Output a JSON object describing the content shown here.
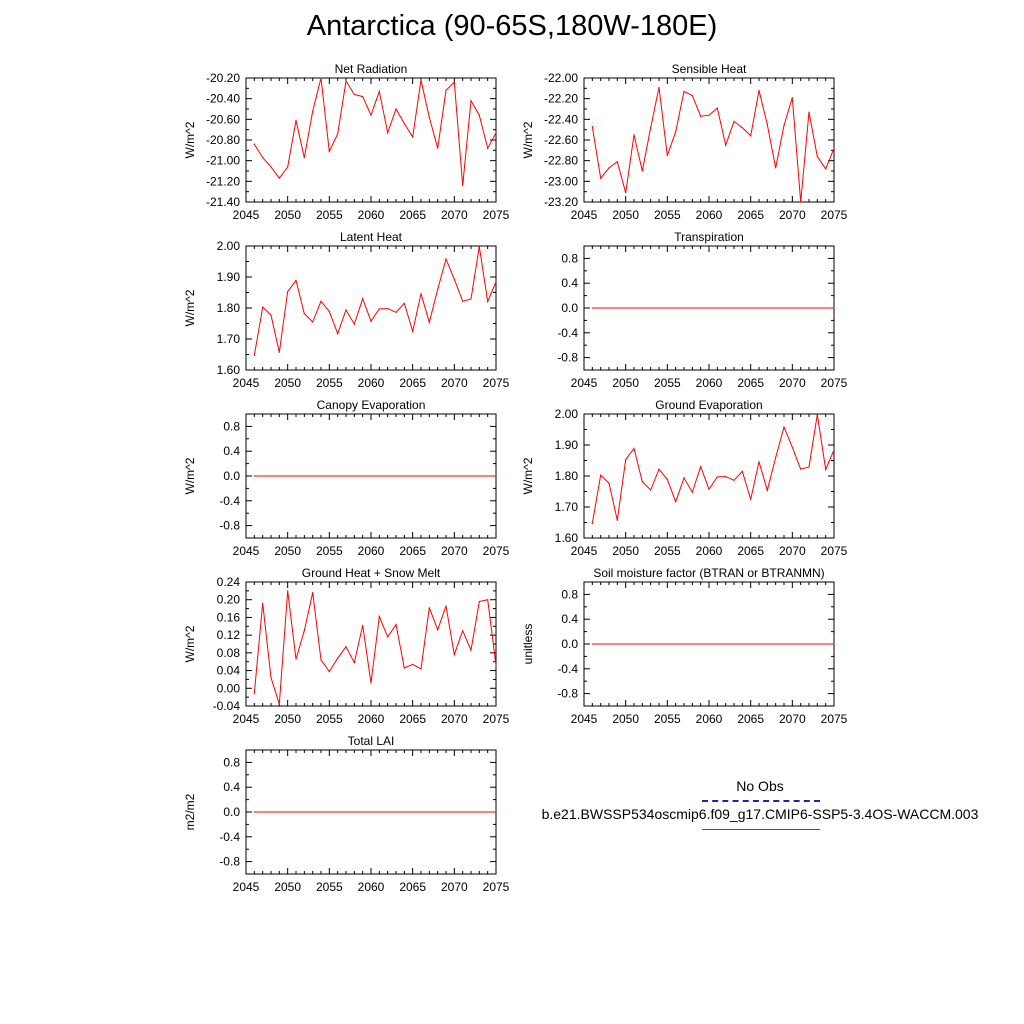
{
  "page": {
    "title": "Antarctica (90-65S,180W-180E)"
  },
  "legend": {
    "obs_label": "No Obs",
    "case_label": "b.e21.BWSSP534oscmip6.f09_g17.CMIP6-SSP5-3.4OS-WACCM.003",
    "obs_color": "#2222aa",
    "case_color": "#ff0000"
  },
  "chart_data": [
    {
      "type": "line",
      "title": "Net Radiation",
      "ylabel": "W/m^2",
      "xlim": [
        2045,
        2075
      ],
      "ylim": [
        -21.4,
        -20.2
      ],
      "xticks": [
        2045,
        2050,
        2055,
        2060,
        2065,
        2070,
        2075
      ],
      "yticks": [
        -21.4,
        -21.2,
        -21.0,
        -20.8,
        -20.6,
        -20.4,
        -20.2
      ],
      "ytick_labels": [
        "-21.40",
        "-21.20",
        "-21.00",
        "-20.80",
        "-20.60",
        "-20.40",
        "-20.20"
      ],
      "x": [
        2046,
        2047,
        2048,
        2049,
        2050,
        2051,
        2052,
        2053,
        2054,
        2055,
        2056,
        2057,
        2058,
        2059,
        2060,
        2061,
        2062,
        2063,
        2064,
        2065,
        2066,
        2067,
        2068,
        2069,
        2070,
        2071,
        2072,
        2073,
        2074,
        2075
      ],
      "series": [
        {
          "values": [
            -20.84,
            -20.97,
            -21.06,
            -21.17,
            -21.06,
            -20.61,
            -20.97,
            -20.52,
            -20.2,
            -20.91,
            -20.74,
            -20.23,
            -20.36,
            -20.38,
            -20.56,
            -20.33,
            -20.73,
            -20.5,
            -20.64,
            -20.77,
            -20.22,
            -20.58,
            -20.88,
            -20.32,
            -20.24,
            -21.24,
            -20.42,
            -20.56,
            -20.88,
            -20.73
          ]
        }
      ]
    },
    {
      "type": "line",
      "title": "Sensible Heat",
      "ylabel": "W/m^2",
      "xlim": [
        2045,
        2075
      ],
      "ylim": [
        -23.2,
        -22.0
      ],
      "xticks": [
        2045,
        2050,
        2055,
        2060,
        2065,
        2070,
        2075
      ],
      "yticks": [
        -23.2,
        -23.0,
        -22.8,
        -22.6,
        -22.4,
        -22.2,
        -22.0
      ],
      "ytick_labels": [
        "-23.20",
        "-23.00",
        "-22.80",
        "-22.60",
        "-22.40",
        "-22.20",
        "-22.00"
      ],
      "x": [
        2046,
        2047,
        2048,
        2049,
        2050,
        2051,
        2052,
        2053,
        2054,
        2055,
        2056,
        2057,
        2058,
        2059,
        2060,
        2061,
        2062,
        2063,
        2064,
        2065,
        2066,
        2067,
        2068,
        2069,
        2070,
        2071,
        2072,
        2073,
        2074,
        2075
      ],
      "series": [
        {
          "values": [
            -22.47,
            -22.97,
            -22.87,
            -22.81,
            -23.11,
            -22.55,
            -22.9,
            -22.48,
            -22.09,
            -22.75,
            -22.52,
            -22.13,
            -22.17,
            -22.37,
            -22.36,
            -22.29,
            -22.65,
            -22.42,
            -22.48,
            -22.56,
            -22.12,
            -22.45,
            -22.87,
            -22.46,
            -22.19,
            -23.2,
            -22.33,
            -22.76,
            -22.88,
            -22.68
          ]
        }
      ]
    },
    {
      "type": "line",
      "title": "Latent Heat",
      "ylabel": "W/m^2",
      "xlim": [
        2045,
        2075
      ],
      "ylim": [
        1.6,
        2.0
      ],
      "xticks": [
        2045,
        2050,
        2055,
        2060,
        2065,
        2070,
        2075
      ],
      "yticks": [
        1.6,
        1.7,
        1.8,
        1.9,
        2.0
      ],
      "ytick_labels": [
        "1.60",
        "1.70",
        "1.80",
        "1.90",
        "2.00"
      ],
      "x": [
        2046,
        2047,
        2048,
        2049,
        2050,
        2051,
        2052,
        2053,
        2054,
        2055,
        2056,
        2057,
        2058,
        2059,
        2060,
        2061,
        2062,
        2063,
        2064,
        2065,
        2066,
        2067,
        2068,
        2069,
        2070,
        2071,
        2072,
        2073,
        2074,
        2075
      ],
      "series": [
        {
          "values": [
            1.647,
            1.803,
            1.777,
            1.657,
            1.853,
            1.889,
            1.782,
            1.755,
            1.822,
            1.789,
            1.717,
            1.794,
            1.748,
            1.83,
            1.757,
            1.797,
            1.798,
            1.786,
            1.815,
            1.725,
            1.846,
            1.754,
            1.86,
            1.958,
            1.893,
            1.822,
            1.829,
            1.998,
            1.821,
            1.884
          ]
        }
      ]
    },
    {
      "type": "line",
      "title": "Transpiration",
      "ylabel": "",
      "xlim": [
        2045,
        2075
      ],
      "ylim": [
        -1.0,
        1.0
      ],
      "xticks": [
        2045,
        2050,
        2055,
        2060,
        2065,
        2070,
        2075
      ],
      "yticks": [
        -0.8,
        -0.4,
        0.0,
        0.4,
        0.8
      ],
      "ytick_labels": [
        "-0.8",
        "-0.4",
        "0.0",
        "0.4",
        "0.8"
      ],
      "x": [
        2046,
        2075
      ],
      "series": [
        {
          "values": [
            0.0,
            0.0
          ]
        }
      ]
    },
    {
      "type": "line",
      "title": "Canopy Evaporation",
      "ylabel": "W/m^2",
      "xlim": [
        2045,
        2075
      ],
      "ylim": [
        -1.0,
        1.0
      ],
      "xticks": [
        2045,
        2050,
        2055,
        2060,
        2065,
        2070,
        2075
      ],
      "yticks": [
        -0.8,
        -0.4,
        0.0,
        0.4,
        0.8
      ],
      "ytick_labels": [
        "-0.8",
        "-0.4",
        "0.0",
        "0.4",
        "0.8"
      ],
      "x": [
        2046,
        2075
      ],
      "series": [
        {
          "values": [
            0.0,
            0.0
          ]
        }
      ]
    },
    {
      "type": "line",
      "title": "Ground Evaporation",
      "ylabel": "W/m^2",
      "xlim": [
        2045,
        2075
      ],
      "ylim": [
        1.6,
        2.0
      ],
      "xticks": [
        2045,
        2050,
        2055,
        2060,
        2065,
        2070,
        2075
      ],
      "yticks": [
        1.6,
        1.7,
        1.8,
        1.9,
        2.0
      ],
      "ytick_labels": [
        "1.60",
        "1.70",
        "1.80",
        "1.90",
        "2.00"
      ],
      "x": [
        2046,
        2047,
        2048,
        2049,
        2050,
        2051,
        2052,
        2053,
        2054,
        2055,
        2056,
        2057,
        2058,
        2059,
        2060,
        2061,
        2062,
        2063,
        2064,
        2065,
        2066,
        2067,
        2068,
        2069,
        2070,
        2071,
        2072,
        2073,
        2074,
        2075
      ],
      "series": [
        {
          "values": [
            1.647,
            1.803,
            1.777,
            1.657,
            1.853,
            1.889,
            1.782,
            1.755,
            1.822,
            1.789,
            1.717,
            1.794,
            1.748,
            1.83,
            1.757,
            1.797,
            1.798,
            1.786,
            1.815,
            1.725,
            1.846,
            1.754,
            1.86,
            1.958,
            1.893,
            1.822,
            1.829,
            1.998,
            1.821,
            1.884
          ]
        }
      ]
    },
    {
      "type": "line",
      "title": "Ground Heat + Snow Melt",
      "ylabel": "W/m^2",
      "xlim": [
        2045,
        2075
      ],
      "ylim": [
        -0.04,
        0.24
      ],
      "xticks": [
        2045,
        2050,
        2055,
        2060,
        2065,
        2070,
        2075
      ],
      "yticks": [
        -0.04,
        0.0,
        0.04,
        0.08,
        0.12,
        0.16,
        0.2,
        0.24
      ],
      "ytick_labels": [
        "-0.04",
        "0.00",
        "0.04",
        "0.08",
        "0.12",
        "0.16",
        "0.20",
        "0.24"
      ],
      "x": [
        2046,
        2047,
        2048,
        2049,
        2050,
        2051,
        2052,
        2053,
        2054,
        2055,
        2056,
        2057,
        2058,
        2059,
        2060,
        2061,
        2062,
        2063,
        2064,
        2065,
        2066,
        2067,
        2068,
        2069,
        2070,
        2071,
        2072,
        2073,
        2074,
        2075
      ],
      "series": [
        {
          "values": [
            -0.012,
            0.192,
            0.024,
            -0.036,
            0.22,
            0.066,
            0.13,
            0.216,
            0.064,
            0.038,
            0.068,
            0.094,
            0.058,
            0.142,
            0.012,
            0.162,
            0.116,
            0.144,
            0.046,
            0.054,
            0.044,
            0.182,
            0.132,
            0.186,
            0.076,
            0.13,
            0.086,
            0.196,
            0.2,
            0.052
          ]
        }
      ]
    },
    {
      "type": "line",
      "title": "Soil moisture factor (BTRAN or BTRANMN)",
      "ylabel": "unitless",
      "xlim": [
        2045,
        2075
      ],
      "ylim": [
        -1.0,
        1.0
      ],
      "xticks": [
        2045,
        2050,
        2055,
        2060,
        2065,
        2070,
        2075
      ],
      "yticks": [
        -0.8,
        -0.4,
        0.0,
        0.4,
        0.8
      ],
      "ytick_labels": [
        "-0.8",
        "-0.4",
        "0.0",
        "0.4",
        "0.8"
      ],
      "x": [
        2046,
        2075
      ],
      "series": [
        {
          "values": [
            0.0,
            0.0
          ]
        }
      ]
    },
    {
      "type": "line",
      "title": "Total LAI",
      "ylabel": "m2/m2",
      "xlim": [
        2045,
        2075
      ],
      "ylim": [
        -1.0,
        1.0
      ],
      "xticks": [
        2045,
        2050,
        2055,
        2060,
        2065,
        2070,
        2075
      ],
      "yticks": [
        -0.8,
        -0.4,
        0.0,
        0.4,
        0.8
      ],
      "ytick_labels": [
        "-0.8",
        "-0.4",
        "0.0",
        "0.4",
        "0.8"
      ],
      "x": [
        2046,
        2075
      ],
      "series": [
        {
          "values": [
            0.0,
            0.0
          ]
        }
      ]
    }
  ]
}
